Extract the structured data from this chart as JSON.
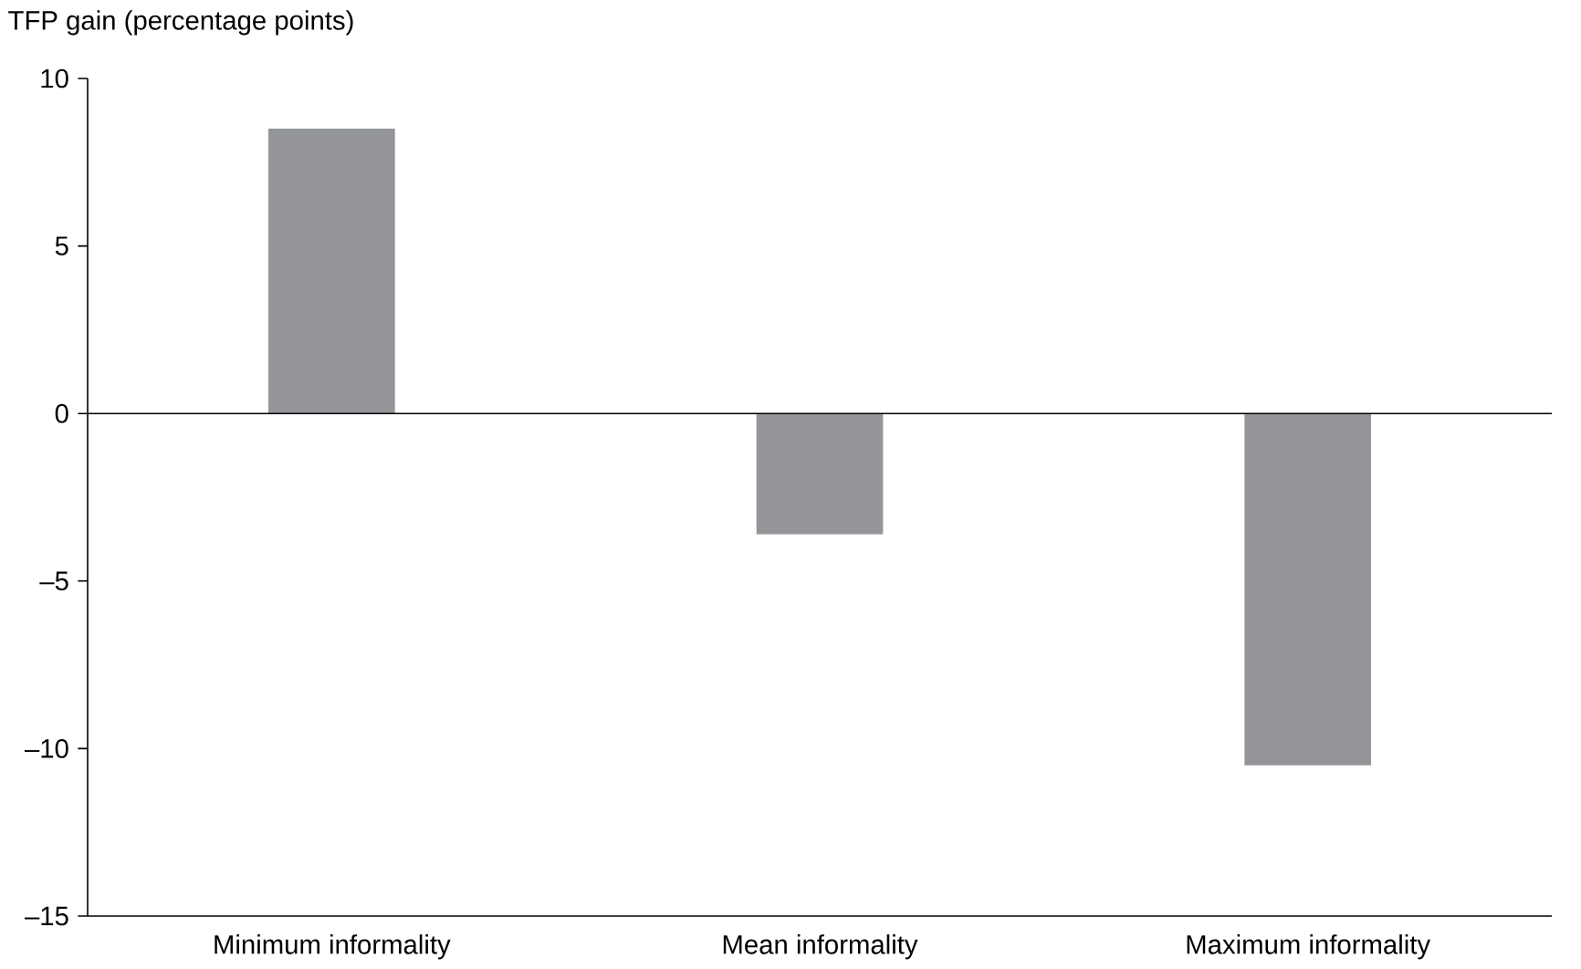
{
  "chart_data": {
    "type": "bar",
    "ylabel": "TFP gain (percentage points)",
    "categories": [
      "Minimum informality",
      "Mean informality",
      "Maximum informality"
    ],
    "values": [
      8.5,
      -3.6,
      -10.5
    ],
    "color": "#939598",
    "ylim": [
      -15,
      10
    ],
    "yticks": [
      {
        "value": -15,
        "label": "–15"
      },
      {
        "value": -10,
        "label": "–10"
      },
      {
        "value": -5,
        "label": "–5"
      },
      0,
      5,
      10
    ],
    "ref_lines": [
      {
        "axis": "y",
        "value": 0,
        "color": "#000000"
      }
    ]
  }
}
